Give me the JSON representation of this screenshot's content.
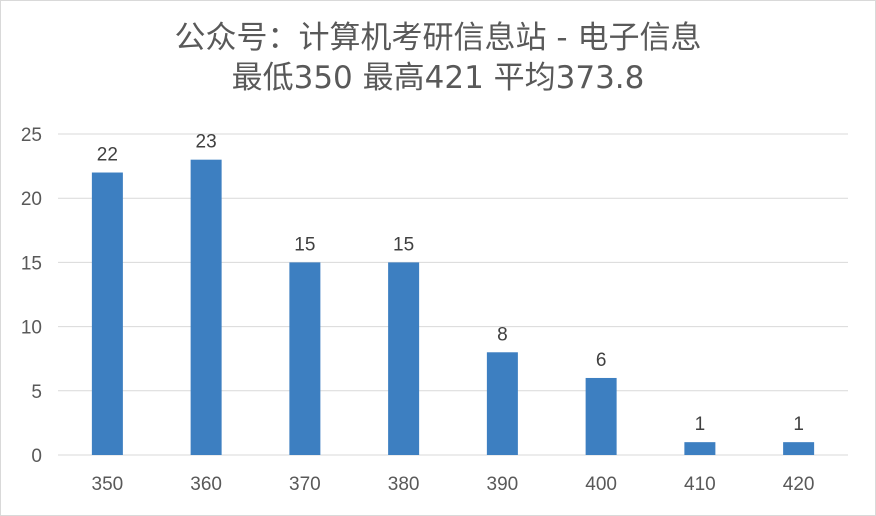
{
  "chart_data": {
    "type": "bar",
    "title": "公众号：计算机考研信息站 - 电子信息",
    "subtitle": "最低350 最高421 平均373.8",
    "xlabel": "",
    "ylabel": "",
    "categories": [
      "350",
      "360",
      "370",
      "380",
      "390",
      "400",
      "410",
      "420"
    ],
    "values": [
      22,
      23,
      15,
      15,
      8,
      6,
      1,
      1
    ],
    "data_labels": [
      "22",
      "23",
      "15",
      "15",
      "8",
      "6",
      "1",
      "1"
    ],
    "ylim": [
      0,
      25
    ],
    "yticks": [
      "0",
      "5",
      "10",
      "15",
      "20",
      "25"
    ],
    "grid": true,
    "legend": "none",
    "colors": {
      "bar": "#3d7fc1",
      "grid": "#d9d9d9",
      "text": "#595959"
    }
  }
}
